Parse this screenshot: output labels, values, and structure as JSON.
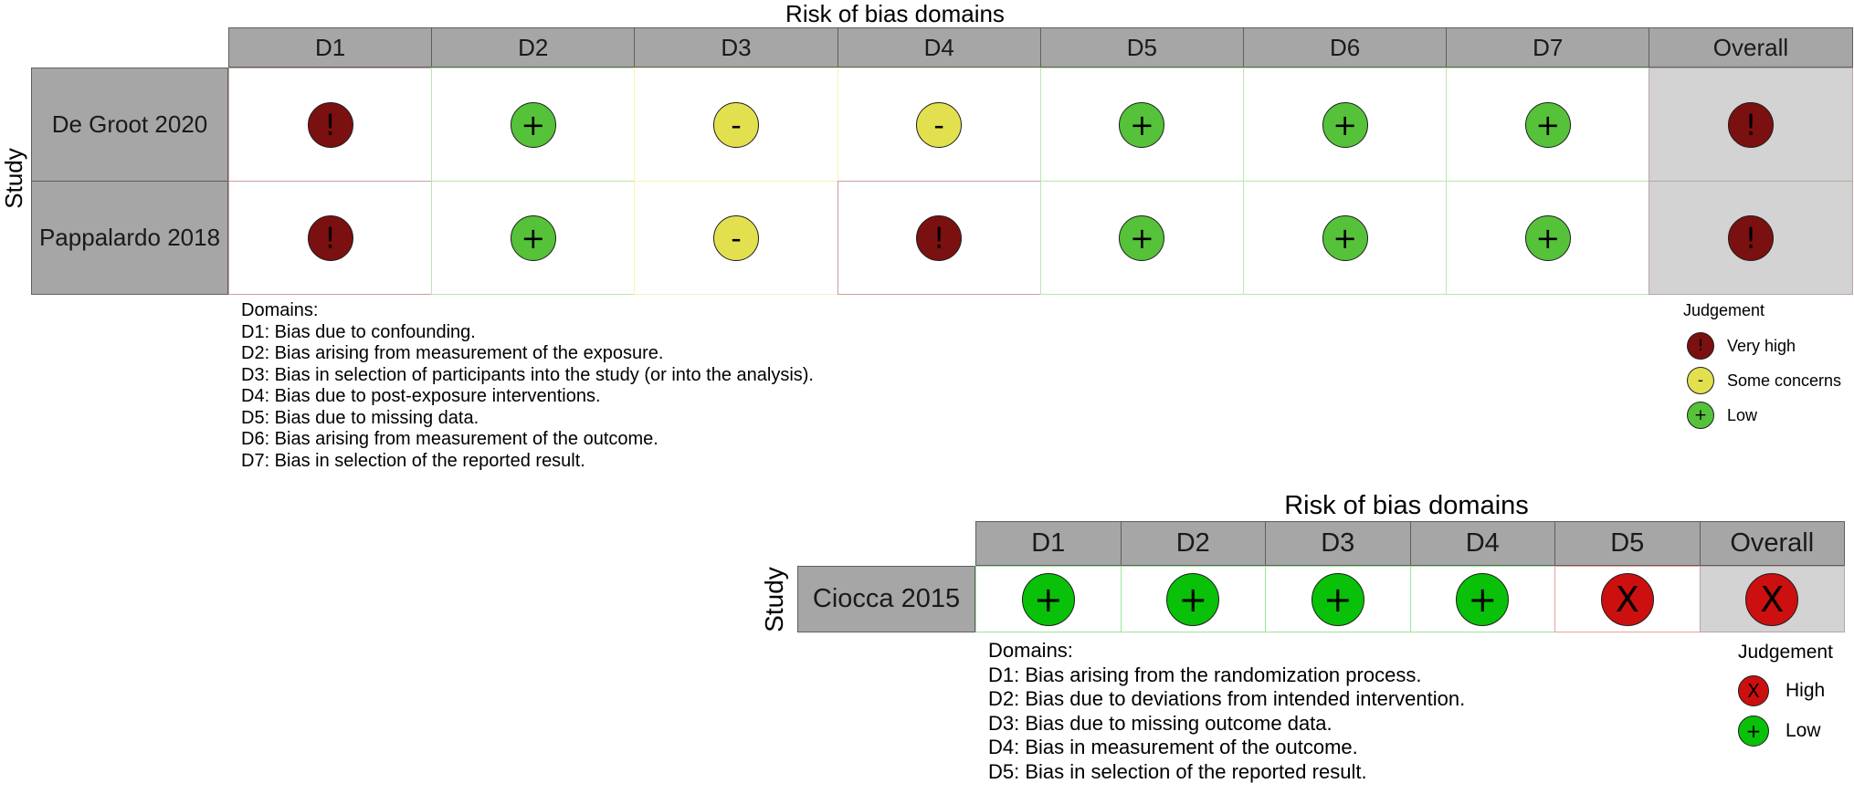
{
  "colors": {
    "header_bg": "#a6a6a6",
    "overall_bg": "#d3d3d3",
    "very_high": "#7b1010",
    "some_concerns": "#e3e04f",
    "low_light": "#55c23a",
    "high": "#cc0f0f",
    "low_bright": "#08c108"
  },
  "fig1": {
    "title": "Risk of bias domains",
    "study_axis": "Study",
    "headers": [
      "D1",
      "D2",
      "D3",
      "D4",
      "D5",
      "D6",
      "D7",
      "Overall"
    ],
    "rows": [
      {
        "study": "De Groot 2020",
        "judgements": [
          "!",
          "+",
          "-",
          "-",
          "+",
          "+",
          "+",
          "!"
        ]
      },
      {
        "study": "Pappalardo 2018",
        "judgements": [
          "!",
          "+",
          "-",
          "!",
          "+",
          "+",
          "+",
          "!"
        ]
      }
    ],
    "domains_title": "Domains:",
    "domains": [
      "D1: Bias due to confounding.",
      "D2: Bias arising from measurement of the exposure.",
      "D3: Bias in selection of participants into the study (or into the analysis).",
      "D4: Bias due to post-exposure interventions.",
      "D5: Bias due to missing data.",
      "D6: Bias arising from measurement of the outcome.",
      "D7: Bias in selection of the reported result."
    ],
    "legend_title": "Judgement",
    "legend": [
      {
        "symbol": "!",
        "label": "Very high"
      },
      {
        "symbol": "-",
        "label": "Some concerns"
      },
      {
        "symbol": "+",
        "label": "Low"
      }
    ]
  },
  "fig2": {
    "title": "Risk of bias domains",
    "study_axis": "Study",
    "headers": [
      "D1",
      "D2",
      "D3",
      "D4",
      "D5",
      "Overall"
    ],
    "rows": [
      {
        "study": "Ciocca 2015",
        "judgements": [
          "+",
          "+",
          "+",
          "+",
          "X",
          "X"
        ]
      }
    ],
    "domains_title": "Domains:",
    "domains": [
      "D1: Bias arising from the randomization process.",
      "D2: Bias due to deviations from intended intervention.",
      "D3: Bias due to missing outcome data.",
      "D4: Bias in measurement of the outcome.",
      "D5: Bias in selection of the reported result."
    ],
    "legend_title": "Judgement",
    "legend": [
      {
        "symbol": "X",
        "label": "High"
      },
      {
        "symbol": "+",
        "label": "Low"
      }
    ]
  }
}
